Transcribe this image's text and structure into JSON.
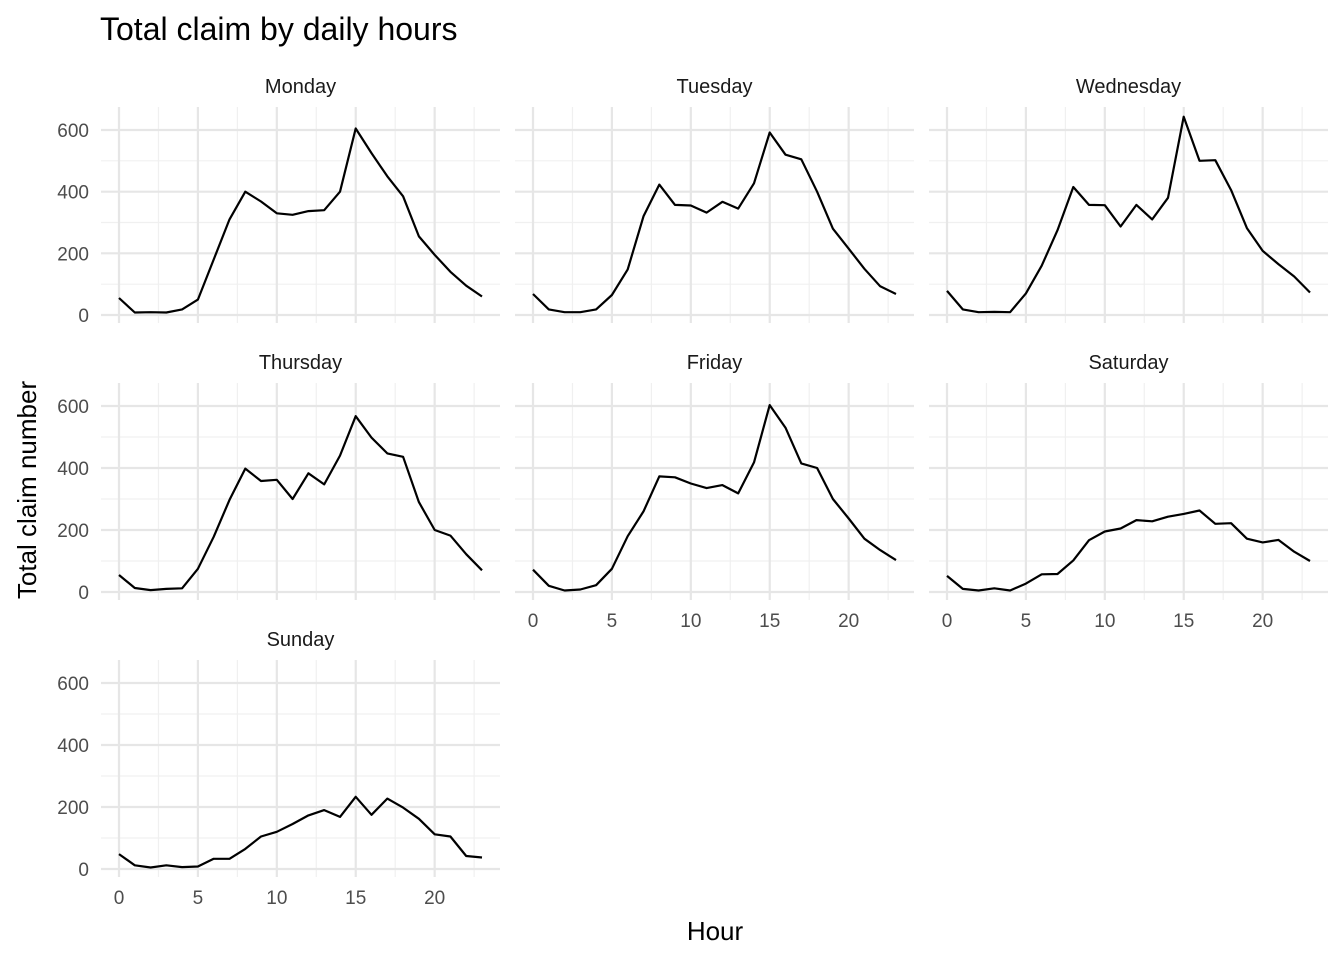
{
  "chart_data": {
    "type": "line",
    "title": "Total claim by daily hours",
    "xlabel": "Hour",
    "ylabel": "Total claim number",
    "xlim": [
      0,
      23
    ],
    "ylim": [
      0,
      600
    ],
    "x_ticks": [
      "0",
      "5",
      "10",
      "15",
      "20"
    ],
    "y_ticks": [
      "0",
      "200",
      "400",
      "600"
    ],
    "grid": true,
    "x": [
      0,
      1,
      2,
      3,
      4,
      5,
      6,
      7,
      8,
      9,
      10,
      11,
      12,
      13,
      14,
      15,
      16,
      17,
      18,
      19,
      20,
      21,
      22,
      23
    ],
    "panels": [
      {
        "name": "Monday",
        "values": [
          55,
          8,
          9,
          8,
          18,
          50,
          180,
          310,
          400,
          368,
          330,
          325,
          337,
          340,
          400,
          605,
          525,
          450,
          385,
          255,
          195,
          140,
          95,
          60
        ]
      },
      {
        "name": "Tuesday",
        "values": [
          68,
          18,
          9,
          9,
          18,
          65,
          148,
          320,
          423,
          357,
          355,
          332,
          367,
          345,
          427,
          592,
          520,
          505,
          400,
          280,
          215,
          150,
          93,
          68
        ]
      },
      {
        "name": "Wednesday",
        "values": [
          78,
          18,
          9,
          10,
          9,
          70,
          160,
          275,
          415,
          357,
          356,
          287,
          357,
          310,
          380,
          643,
          500,
          502,
          405,
          282,
          208,
          165,
          125,
          73
        ]
      },
      {
        "name": "Thursday",
        "values": [
          55,
          13,
          6,
          10,
          12,
          75,
          178,
          297,
          398,
          358,
          362,
          300,
          383,
          347,
          440,
          567,
          498,
          447,
          436,
          290,
          200,
          182,
          122,
          70
        ]
      },
      {
        "name": "Friday",
        "values": [
          72,
          20,
          5,
          8,
          22,
          75,
          180,
          260,
          373,
          370,
          350,
          335,
          345,
          318,
          418,
          603,
          530,
          415,
          400,
          300,
          237,
          172,
          135,
          103
        ]
      },
      {
        "name": "Saturday",
        "values": [
          52,
          10,
          5,
          12,
          5,
          27,
          57,
          58,
          102,
          167,
          195,
          205,
          232,
          228,
          243,
          252,
          263,
          220,
          222,
          172,
          160,
          168,
          130,
          100
        ]
      },
      {
        "name": "Sunday",
        "values": [
          48,
          12,
          5,
          12,
          6,
          8,
          33,
          33,
          65,
          105,
          120,
          145,
          173,
          190,
          168,
          233,
          175,
          227,
          198,
          162,
          112,
          105,
          42,
          37
        ]
      }
    ]
  }
}
